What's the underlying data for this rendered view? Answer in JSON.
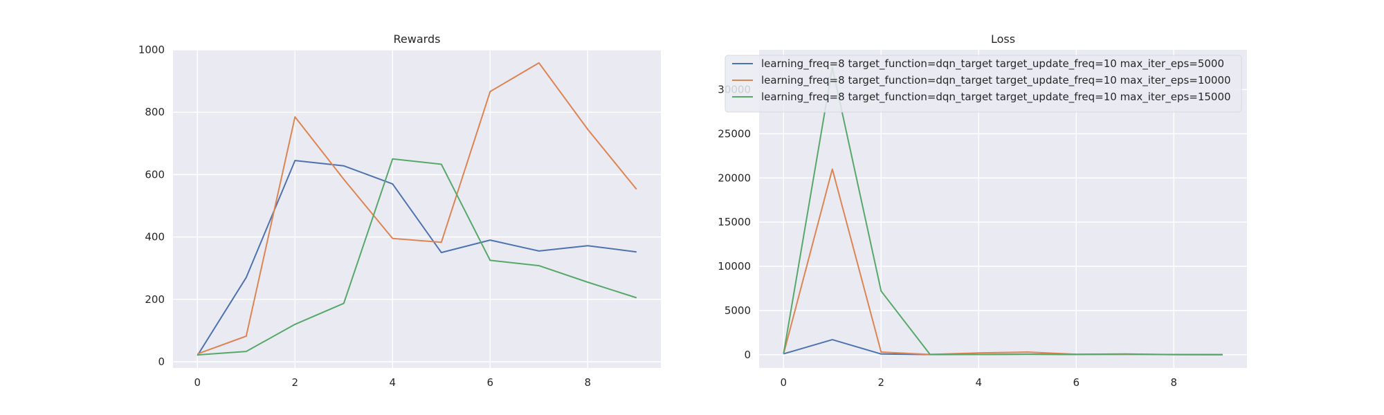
{
  "colors": {
    "plot_background": "#eaeaf2",
    "grid": "#ffffff",
    "series": [
      "#4c72b0",
      "#dd8452",
      "#55a868"
    ]
  },
  "chart_data": [
    {
      "type": "line",
      "title": "Rewards",
      "xlabel": "",
      "ylabel": "",
      "grid": true,
      "x": [
        0,
        1,
        2,
        3,
        4,
        5,
        6,
        7,
        8,
        9
      ],
      "xlim": [
        -0.5,
        9.5
      ],
      "ylim": [
        -20,
        1000
      ],
      "xticks": [
        0,
        2,
        4,
        6,
        8
      ],
      "yticks": [
        0,
        200,
        400,
        600,
        800,
        1000
      ],
      "series": [
        {
          "values": [
            20,
            270,
            645,
            628,
            570,
            350,
            390,
            355,
            372,
            352
          ]
        },
        {
          "values": [
            25,
            82,
            785,
            585,
            395,
            383,
            866,
            958,
            745,
            553
          ]
        },
        {
          "values": [
            22,
            33,
            120,
            187,
            650,
            633,
            325,
            308,
            255,
            205
          ]
        }
      ]
    },
    {
      "type": "line",
      "title": "Loss",
      "xlabel": "",
      "ylabel": "",
      "grid": true,
      "legend": "top-right",
      "x": [
        0,
        1,
        2,
        3,
        4,
        5,
        6,
        7,
        8,
        9
      ],
      "xlim": [
        -0.5,
        9.5
      ],
      "ylim": [
        -1500,
        34500
      ],
      "xticks": [
        0,
        2,
        4,
        6,
        8
      ],
      "yticks": [
        0,
        5000,
        10000,
        15000,
        20000,
        25000,
        30000
      ],
      "series": [
        {
          "name": "learning_freq=8 target_function=dqn_target target_update_freq=10 max_iter_eps=5000",
          "values": [
            100,
            1700,
            80,
            20,
            30,
            60,
            30,
            40,
            20,
            10
          ]
        },
        {
          "name": "learning_freq=8 target_function=dqn_target target_update_freq=10 max_iter_eps=10000",
          "values": [
            100,
            21000,
            300,
            30,
            200,
            300,
            50,
            30,
            20,
            10
          ]
        },
        {
          "name": "learning_freq=8 target_function=dqn_target target_update_freq=10 max_iter_eps=15000",
          "values": [
            100,
            32500,
            7200,
            50,
            30,
            60,
            40,
            80,
            20,
            10
          ]
        }
      ]
    }
  ]
}
